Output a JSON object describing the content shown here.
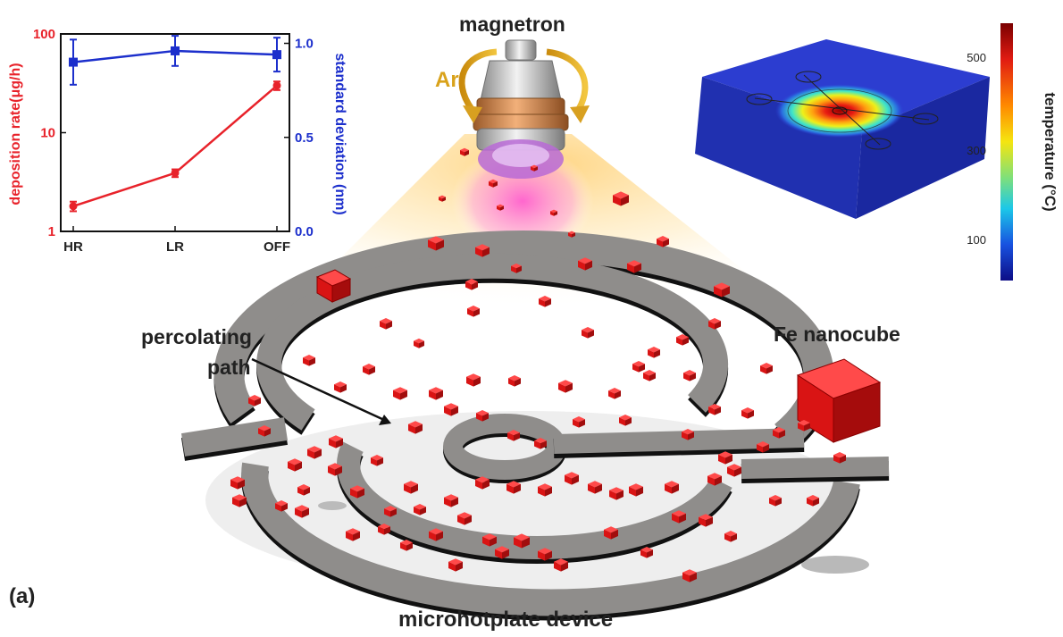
{
  "labels": {
    "magnetron": "magnetron",
    "gas": "Ar",
    "percolating_line1": "percolating",
    "percolating_line2": "path",
    "fe_nanocube": "Fe nanocube",
    "device": "microhotplate device",
    "panel": "(a)"
  },
  "chart_data": {
    "type": "line",
    "categories": [
      "HR",
      "LR",
      "OFF"
    ],
    "y_left": {
      "label": "deposition rate(μg/h)",
      "scale": "log",
      "range": [
        1,
        100
      ],
      "ticks": [
        "1",
        "10",
        "100"
      ],
      "color": "#e8222a"
    },
    "y_right": {
      "label": "standard deviation (nm)",
      "scale": "linear",
      "range": [
        0,
        1.05
      ],
      "ticks": [
        "0.0",
        "0.5",
        "1.0"
      ],
      "color": "#1c2fcc"
    },
    "series": [
      {
        "axis": "left",
        "color": "#e8222a",
        "values": [
          1.8,
          3.9,
          30
        ],
        "errors": [
          0.2,
          0.35,
          3
        ]
      },
      {
        "axis": "right",
        "color": "#1c2fcc",
        "values": [
          0.9,
          0.96,
          0.94
        ],
        "errors": [
          0.12,
          0.08,
          0.09
        ]
      }
    ]
  },
  "colorbar": {
    "label": "temperature (°C)",
    "ticks": [
      "500",
      "300",
      "100"
    ]
  },
  "colors": {
    "cube": "#d91414",
    "plate": "#8f8d8b",
    "plasma": "#ff5fcf"
  }
}
